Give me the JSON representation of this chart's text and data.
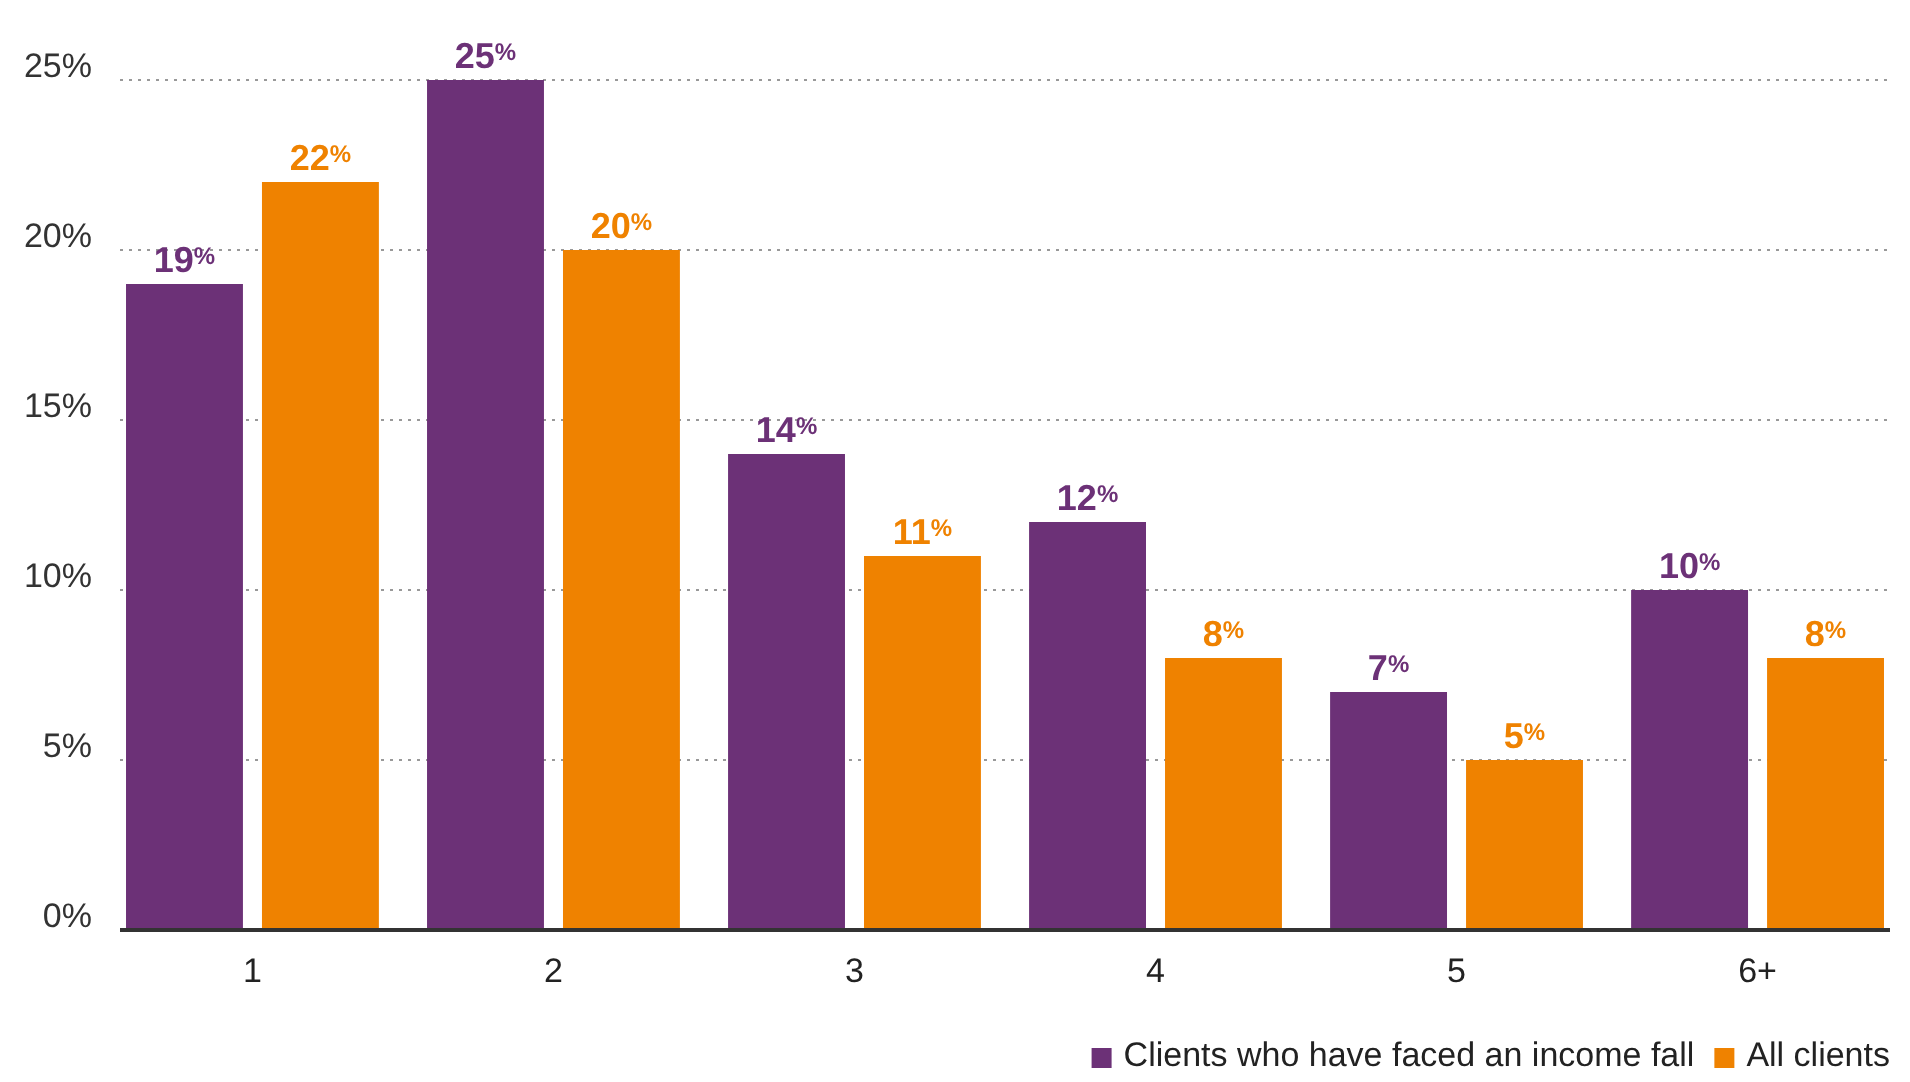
{
  "chart_data": {
    "type": "bar",
    "categories": [
      "1",
      "2",
      "3",
      "4",
      "5",
      "6+"
    ],
    "series": [
      {
        "name": "Clients who have faced an income fall",
        "color": "#6c3177",
        "values": [
          19,
          25,
          14,
          12,
          7,
          10
        ],
        "value_labels": [
          "19$^{%}$",
          "25$^{%}$",
          "14$^{%}$",
          "12$^{%}$",
          "7$^{%}$",
          "10$^{%}$"
        ]
      },
      {
        "name": "All clients",
        "color": "#ef8200",
        "values": [
          22,
          20,
          11,
          8,
          5,
          8
        ],
        "value_labels": [
          "22$^{%}$",
          "20$^{%}$",
          "11$^{%}$",
          "8$^{%}$",
          "5$^{%}$",
          "8$^{%}$"
        ]
      }
    ],
    "ylim": [
      0,
      25
    ],
    "yticks": [
      {
        "value": 0,
        "label": "0%"
      },
      {
        "value": 5,
        "label": "5%"
      },
      {
        "value": 10,
        "label": "10%"
      },
      {
        "value": 15,
        "label": "15%"
      },
      {
        "value": 20,
        "label": "20%"
      },
      {
        "value": 25,
        "label": "25%"
      }
    ],
    "grid": "y",
    "legend": "bottom right"
  }
}
